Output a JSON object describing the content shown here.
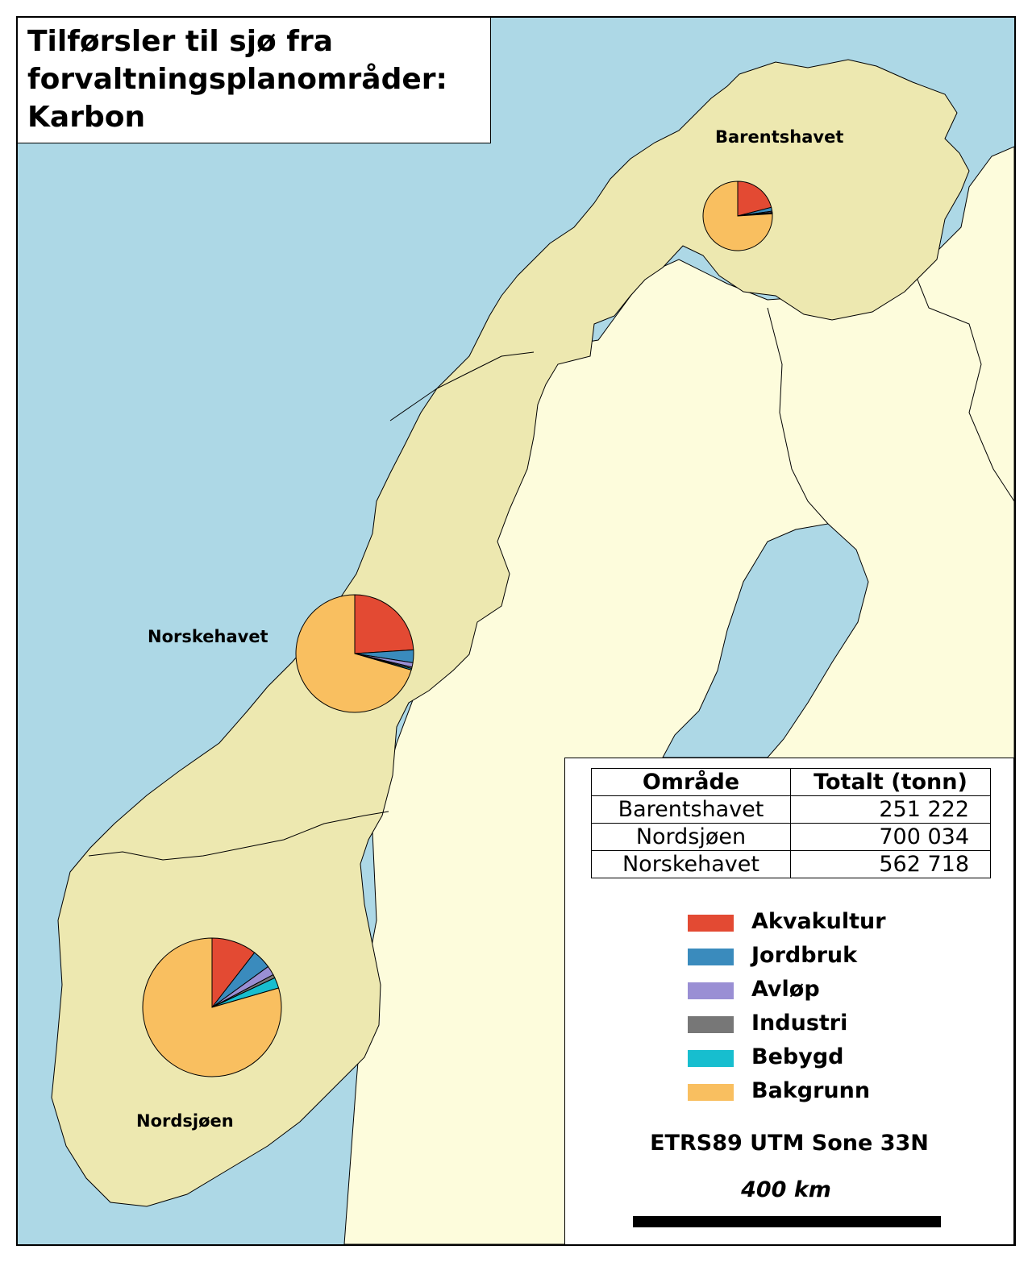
{
  "title": {
    "lines": [
      "Tilførsler til sjø fra",
      "forvaltningsplanområder:",
      "Karbon"
    ]
  },
  "regions": [
    {
      "name": "Barentshavet",
      "shares": [
        0.21,
        0.018,
        0.006,
        0.004,
        0.002,
        0.76
      ]
    },
    {
      "name": "Norskehavet",
      "shares": [
        0.24,
        0.035,
        0.012,
        0.004,
        0.004,
        0.705
      ]
    },
    {
      "name": "Nordsjøen",
      "shares": [
        0.105,
        0.045,
        0.022,
        0.008,
        0.025,
        0.795
      ]
    }
  ],
  "table": {
    "headers": [
      "Område",
      "Totalt (tonn)"
    ],
    "rows": [
      [
        "Barentshavet",
        "251 222"
      ],
      [
        "Nordsjøen",
        "700 034"
      ],
      [
        "Norskehavet",
        "562 718"
      ]
    ]
  },
  "legend": [
    {
      "label": "Akvakultur",
      "color": "#e34a33"
    },
    {
      "label": "Jordbruk",
      "color": "#3a8bbd"
    },
    {
      "label": "Avløp",
      "color": "#9a8fd4"
    },
    {
      "label": "Industri",
      "color": "#777777"
    },
    {
      "label": "Bebygd",
      "color": "#17becf"
    },
    {
      "label": "Bakgrunn",
      "color": "#f9bf60"
    }
  ],
  "projection": "ETRS89 UTM Sone 33N",
  "scale": {
    "label": "400 km"
  },
  "colors": {
    "sea": "#add8e6",
    "norway": "#ede8b0",
    "other_land": "#fdfcdc",
    "border": "#000000"
  }
}
